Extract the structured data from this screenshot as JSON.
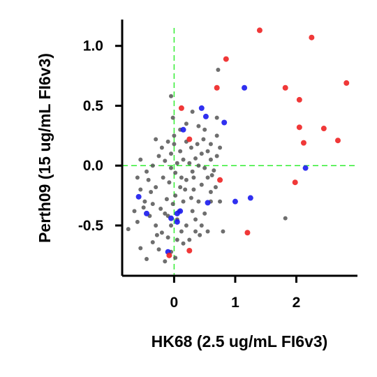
{
  "chart_data": {
    "type": "scatter",
    "xlabel": "HK68 (2.5 ug/mL FI6v3)",
    "ylabel": "Perth09 (15 ug/mL FI6v3)",
    "xlim": [
      -0.85,
      3.0
    ],
    "ylim": [
      -0.92,
      1.22
    ],
    "x_ticks": [
      0,
      1,
      2
    ],
    "y_ticks": [
      -0.5,
      0.0,
      0.5,
      1.0
    ],
    "x_tick_labels": [
      "0",
      "1",
      "2"
    ],
    "y_tick_labels": [
      "-0.5",
      "0.0",
      "0.5",
      "1.0"
    ],
    "reference_lines": {
      "x": 0,
      "y": 0,
      "color": "#33ee33",
      "style": "dashed"
    },
    "grid": false,
    "series": [
      {
        "color": "#555555",
        "points": [
          [
            -0.55,
            -0.69
          ],
          [
            -0.45,
            -0.78
          ],
          [
            -0.35,
            -0.64
          ],
          [
            -0.25,
            -0.7
          ],
          [
            -0.15,
            -0.8
          ],
          [
            -0.05,
            -0.72
          ],
          [
            0.02,
            -0.77
          ],
          [
            0.05,
            -0.62
          ],
          [
            -0.75,
            -0.53
          ],
          [
            -0.6,
            -0.47
          ],
          [
            -0.5,
            -0.35
          ],
          [
            -0.4,
            -0.42
          ],
          [
            -0.3,
            -0.5
          ],
          [
            -0.2,
            -0.56
          ],
          [
            -0.1,
            -0.6
          ],
          [
            -0.05,
            -0.5
          ],
          [
            0.05,
            -0.45
          ],
          [
            0.12,
            -0.55
          ],
          [
            0.2,
            -0.5
          ],
          [
            0.3,
            -0.38
          ],
          [
            0.35,
            -0.45
          ],
          [
            0.45,
            -0.5
          ],
          [
            0.5,
            -0.4
          ],
          [
            0.55,
            -0.55
          ],
          [
            0.6,
            -0.3
          ],
          [
            0.4,
            -0.3
          ],
          [
            0.28,
            -0.27
          ],
          [
            0.15,
            -0.3
          ],
          [
            0.08,
            -0.38
          ],
          [
            -0.02,
            -0.32
          ],
          [
            -0.12,
            -0.28
          ],
          [
            -0.22,
            -0.36
          ],
          [
            -0.35,
            -0.32
          ],
          [
            -0.48,
            -0.3
          ],
          [
            -0.55,
            -0.2
          ],
          [
            -0.42,
            -0.12
          ],
          [
            -0.3,
            -0.18
          ],
          [
            -0.18,
            -0.1
          ],
          [
            -0.08,
            -0.14
          ],
          [
            0.02,
            -0.06
          ],
          [
            0.1,
            -0.18
          ],
          [
            0.2,
            -0.12
          ],
          [
            0.32,
            -0.2
          ],
          [
            0.45,
            -0.16
          ],
          [
            0.55,
            -0.1
          ],
          [
            0.68,
            -0.18
          ],
          [
            0.75,
            -0.3
          ],
          [
            0.8,
            -0.55
          ],
          [
            0.3,
            -0.05
          ],
          [
            0.4,
            0.0
          ],
          [
            0.5,
            -0.02
          ],
          [
            0.6,
            0.05
          ],
          [
            0.65,
            -0.04
          ],
          [
            0.7,
            0.08
          ],
          [
            0.55,
            0.12
          ],
          [
            0.45,
            0.1
          ],
          [
            0.35,
            0.06
          ],
          [
            0.25,
            0.02
          ],
          [
            0.15,
            0.05
          ],
          [
            0.05,
            0.02
          ],
          [
            -0.05,
            -0.02
          ],
          [
            -0.15,
            0.04
          ],
          [
            -0.25,
            0.08
          ],
          [
            -0.35,
            0.0
          ],
          [
            -0.45,
            -0.05
          ],
          [
            -0.55,
            0.05
          ],
          [
            -0.6,
            -0.1
          ],
          [
            -0.2,
            0.15
          ],
          [
            -0.1,
            0.2
          ],
          [
            0.0,
            0.18
          ],
          [
            0.1,
            0.12
          ],
          [
            0.2,
            0.2
          ],
          [
            0.28,
            0.15
          ],
          [
            0.38,
            0.18
          ],
          [
            0.48,
            0.22
          ],
          [
            0.6,
            0.18
          ],
          [
            0.7,
            0.25
          ],
          [
            0.75,
            0.15
          ],
          [
            0.2,
            0.35
          ],
          [
            0.3,
            0.45
          ],
          [
            0.4,
            0.33
          ],
          [
            0.1,
            0.3
          ],
          [
            -0.02,
            0.4
          ],
          [
            -0.05,
            0.58
          ],
          [
            0.0,
            0.25
          ],
          [
            -0.3,
            0.22
          ],
          [
            -0.15,
            -0.4
          ],
          [
            0.6,
            -0.22
          ],
          [
            0.35,
            -0.55
          ],
          [
            -0.65,
            -0.38
          ],
          [
            0.25,
            -0.62
          ],
          [
            0.15,
            -0.65
          ],
          [
            0.42,
            -0.58
          ],
          [
            -0.1,
            -0.42
          ],
          [
            0.7,
            0.4
          ],
          [
            0.72,
            0.8
          ],
          [
            1.82,
            -0.44
          ],
          [
            0.02,
            -0.25
          ],
          [
            -0.38,
            -0.22
          ],
          [
            0.5,
            0.3
          ],
          [
            -0.28,
            -0.58
          ],
          [
            0.18,
            -0.2
          ],
          [
            0.62,
            -0.08
          ],
          [
            0.32,
            -0.1
          ],
          [
            -0.05,
            0.1
          ],
          [
            0.12,
            -0.1
          ]
        ]
      },
      {
        "color": "#1a1aee",
        "points": [
          [
            -0.58,
            -0.26
          ],
          [
            -0.45,
            -0.4
          ],
          [
            0.15,
            0.3
          ],
          [
            0.45,
            0.48
          ],
          [
            0.52,
            0.41
          ],
          [
            0.82,
            0.36
          ],
          [
            1.15,
            0.65
          ],
          [
            0.1,
            -0.38
          ],
          [
            0.05,
            -0.4
          ],
          [
            -0.05,
            -0.44
          ],
          [
            0.05,
            -0.47
          ],
          [
            0.55,
            -0.31
          ],
          [
            1.0,
            -0.3
          ],
          [
            1.25,
            -0.27
          ],
          [
            -0.1,
            -0.72
          ],
          [
            2.15,
            -0.02
          ]
        ]
      },
      {
        "color": "#ee2222",
        "points": [
          [
            1.4,
            1.13
          ],
          [
            2.25,
            1.07
          ],
          [
            0.85,
            0.89
          ],
          [
            0.7,
            0.65
          ],
          [
            1.82,
            0.65
          ],
          [
            2.05,
            0.55
          ],
          [
            2.82,
            0.69
          ],
          [
            0.12,
            0.48
          ],
          [
            0.25,
            0.22
          ],
          [
            2.05,
            0.32
          ],
          [
            2.45,
            0.31
          ],
          [
            2.68,
            0.21
          ],
          [
            2.12,
            0.19
          ],
          [
            1.98,
            -0.14
          ],
          [
            0.75,
            -0.12
          ],
          [
            1.2,
            -0.56
          ],
          [
            0.25,
            -0.71
          ],
          [
            -0.08,
            -0.75
          ]
        ]
      }
    ]
  }
}
